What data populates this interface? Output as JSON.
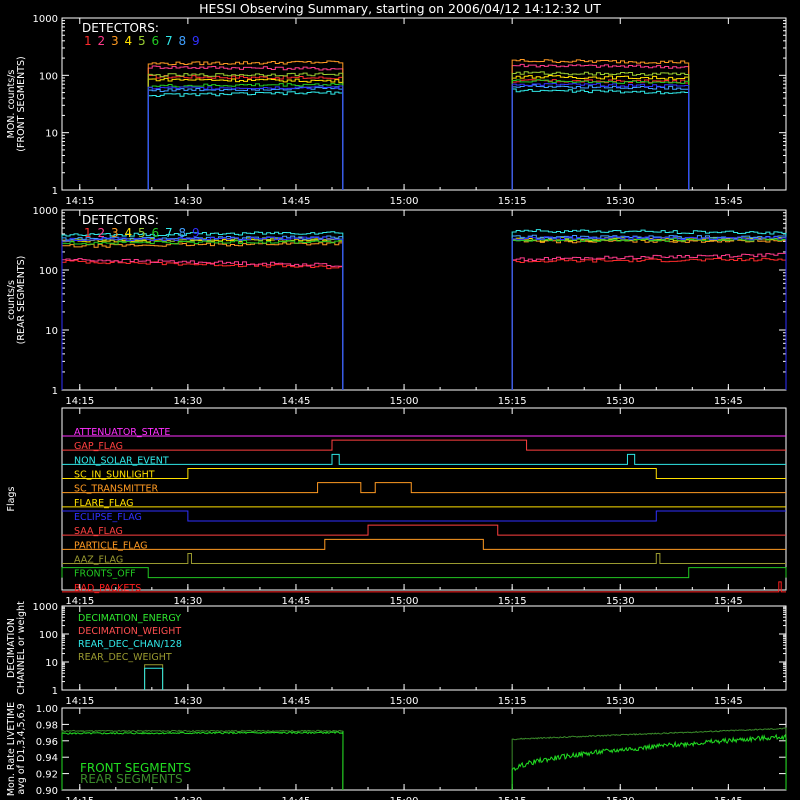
{
  "title": "HESSI Observing Summary, starting on 2006/04/12 14:12:32 UT",
  "colors": {
    "det": [
      "#ff2b2b",
      "#ff3b8b",
      "#ff9a22",
      "#ffe000",
      "#9acd32",
      "#22c822",
      "#30e8e8",
      "#40a0ff",
      "#3030ff"
    ],
    "axis": "#ffffff",
    "live_front": "#22dd22",
    "live_rear": "#3a8a2a"
  },
  "time_axis": {
    "start": "14:12:32",
    "end": "15:53:00",
    "ticks": [
      "14:15",
      "14:30",
      "14:45",
      "15:00",
      "15:15",
      "15:30",
      "15:45"
    ]
  },
  "chart_data": [
    {
      "type": "line",
      "id": "front",
      "ylabel": "MON. counts/s\n(FRONT SEGMENTS)",
      "yscale": "log",
      "ylim": [
        1,
        1000
      ],
      "yticks": [
        "1",
        "10",
        "100",
        "1000"
      ],
      "legend_title": "DETECTORS:",
      "legend_labels": [
        "1",
        "2",
        "3",
        "4",
        "5",
        "6",
        "7",
        "8",
        "9"
      ],
      "segments": [
        {
          "x": [
            "14:24:30",
            "14:51:30"
          ]
        },
        {
          "x": [
            "15:15:00",
            "15:39:30"
          ]
        }
      ],
      "series": [
        {
          "name": "1",
          "values": [
            [
              95,
              90
            ],
            [
              80,
              78
            ]
          ]
        },
        {
          "name": "2",
          "values": [
            [
              140,
              130
            ],
            [
              150,
              140
            ]
          ]
        },
        {
          "name": "3",
          "values": [
            [
              160,
              170
            ],
            [
              180,
              170
            ]
          ]
        },
        {
          "name": "4",
          "values": [
            [
              85,
              80
            ],
            [
              95,
              90
            ]
          ]
        },
        {
          "name": "5",
          "values": [
            [
              100,
              105
            ],
            [
              110,
              105
            ]
          ]
        },
        {
          "name": "6",
          "values": [
            [
              65,
              70
            ],
            [
              80,
              75
            ]
          ]
        },
        {
          "name": "7",
          "values": [
            [
              45,
              50
            ],
            [
              55,
              50
            ]
          ]
        },
        {
          "name": "8",
          "values": [
            [
              55,
              60
            ],
            [
              65,
              60
            ]
          ]
        },
        {
          "name": "9",
          "values": [
            [
              60,
              62
            ],
            [
              70,
              65
            ]
          ]
        }
      ]
    },
    {
      "type": "line",
      "id": "rear",
      "ylabel": "counts/s\n(REAR SEGMENTS)",
      "yscale": "log",
      "ylim": [
        1,
        1000
      ],
      "yticks": [
        "1",
        "10",
        "100",
        "1000"
      ],
      "legend_title": "DETECTORS:",
      "legend_labels": [
        "1",
        "2",
        "3",
        "4",
        "5",
        "6",
        "7",
        "8",
        "9"
      ],
      "segments": [
        {
          "x": [
            "14:12:32",
            "14:51:30"
          ]
        },
        {
          "x": [
            "15:15:00",
            "15:53:00"
          ]
        }
      ],
      "series": [
        {
          "name": "1",
          "values": [
            [
              140,
              110
            ],
            [
              140,
              150
            ]
          ]
        },
        {
          "name": "2",
          "values": [
            [
              150,
              120
            ],
            [
              150,
              180
            ]
          ]
        },
        {
          "name": "3",
          "values": [
            [
              250,
              280
            ],
            [
              300,
              310
            ]
          ]
        },
        {
          "name": "4",
          "values": [
            [
              300,
              320
            ],
            [
              320,
              330
            ]
          ]
        },
        {
          "name": "5",
          "values": [
            [
              310,
              330
            ],
            [
              330,
              330
            ]
          ]
        },
        {
          "name": "6",
          "values": [
            [
              280,
              300
            ],
            [
              310,
              320
            ]
          ]
        },
        {
          "name": "7",
          "values": [
            [
              380,
              420
            ],
            [
              450,
              420
            ]
          ]
        },
        {
          "name": "8",
          "values": [
            [
              330,
              350
            ],
            [
              360,
              350
            ]
          ]
        },
        {
          "name": "9",
          "values": [
            [
              320,
              340
            ],
            [
              340,
              340
            ]
          ]
        }
      ]
    },
    {
      "type": "line",
      "id": "flags",
      "ylabel": "Flags",
      "flags": [
        {
          "name": "ATTENUATOR_STATE",
          "color": "#ff30ff",
          "highs": []
        },
        {
          "name": "GAP_FLAG",
          "color": "#ff4040",
          "highs": [
            [
              "14:50:00",
              "15:17:00"
            ]
          ]
        },
        {
          "name": "NON_SOLAR_EVENT",
          "color": "#30e8e8",
          "highs": [
            [
              "14:50:00",
              "14:51:00"
            ],
            [
              "15:31:00",
              "15:32:00"
            ]
          ]
        },
        {
          "name": "SC_IN_SUNLIGHT",
          "color": "#ffe000",
          "highs": [
            [
              "14:30:00",
              "15:35:00"
            ]
          ]
        },
        {
          "name": "SC_TRANSMITTER",
          "color": "#ff9a22",
          "highs": [
            [
              "14:48:00",
              "14:54:00"
            ],
            [
              "14:56:00",
              "15:01:00"
            ]
          ]
        },
        {
          "name": "FLARE_FLAG",
          "color": "#ffe000",
          "highs": []
        },
        {
          "name": "ECLIPSE_FLAG",
          "color": "#3030ff",
          "low_span": [
            [
              "14:30:00",
              "15:35:00"
            ]
          ]
        },
        {
          "name": "SAA_FLAG",
          "color": "#ff4040",
          "highs": [
            [
              "14:55:00",
              "15:13:00"
            ]
          ]
        },
        {
          "name": "PARTICLE_FLAG",
          "color": "#ff9a22",
          "highs": [
            [
              "14:49:00",
              "15:11:00"
            ]
          ]
        },
        {
          "name": "AAZ_FLAG",
          "color": "#9a9a30",
          "highs": [
            [
              "14:30:00",
              "14:30:30"
            ],
            [
              "15:35:00",
              "15:35:30"
            ]
          ]
        },
        {
          "name": "FRONTS_OFF",
          "color": "#22c822",
          "highs": [
            [
              "14:12:32",
              "14:24:30"
            ],
            [
              "15:39:30",
              "15:53:00"
            ]
          ]
        },
        {
          "name": "BAD_PACKETS",
          "color": "#ff2020",
          "highs": [
            [
              "15:52:00",
              "15:52:20"
            ]
          ]
        }
      ]
    },
    {
      "type": "line",
      "id": "decimation",
      "ylabel": "DECIMATION\nCHANNEL or weight",
      "yscale": "log",
      "ylim": [
        1,
        1000
      ],
      "yticks": [
        "1",
        "10",
        "100",
        "1000"
      ],
      "legend": [
        {
          "name": "DECIMATION_ENERGY",
          "color": "#30e830"
        },
        {
          "name": "DECIMATION_WEIGHT",
          "color": "#ff5050"
        },
        {
          "name": "REAR_DEC_CHAN/128",
          "color": "#30e8e8"
        },
        {
          "name": "REAR_DEC_WEIGHT",
          "color": "#9a9a30"
        }
      ],
      "events": [
        {
          "series": "REAR_DEC_WEIGHT",
          "x": [
            "14:24:00",
            "14:26:30"
          ],
          "value": 8
        },
        {
          "series": "REAR_DEC_CHAN/128",
          "x": [
            "14:24:00",
            "14:26:30"
          ],
          "value": 6
        }
      ]
    },
    {
      "type": "line",
      "id": "livetime",
      "ylabel": "Mon. Rate LIVETIME\navg of D1,3,4,5,6,9",
      "ylim": [
        0.9,
        1.0
      ],
      "yticks": [
        "0.90",
        "0.92",
        "0.94",
        "0.96",
        "0.98",
        "1.00"
      ],
      "legend": [
        {
          "name": "FRONT SEGMENTS",
          "color": "#22dd22"
        },
        {
          "name": "REAR SEGMENTS",
          "color": "#3a8a2a"
        }
      ],
      "segments": [
        {
          "x": [
            "14:12:32",
            "14:51:30"
          ],
          "front": [
            0.969,
            0.97
          ],
          "rear": [
            0.972,
            0.972
          ]
        },
        {
          "x": [
            "15:15:00",
            "15:53:00"
          ],
          "front": [
            0.922,
            0.965
          ],
          "rear": [
            0.962,
            0.975
          ]
        }
      ]
    }
  ]
}
